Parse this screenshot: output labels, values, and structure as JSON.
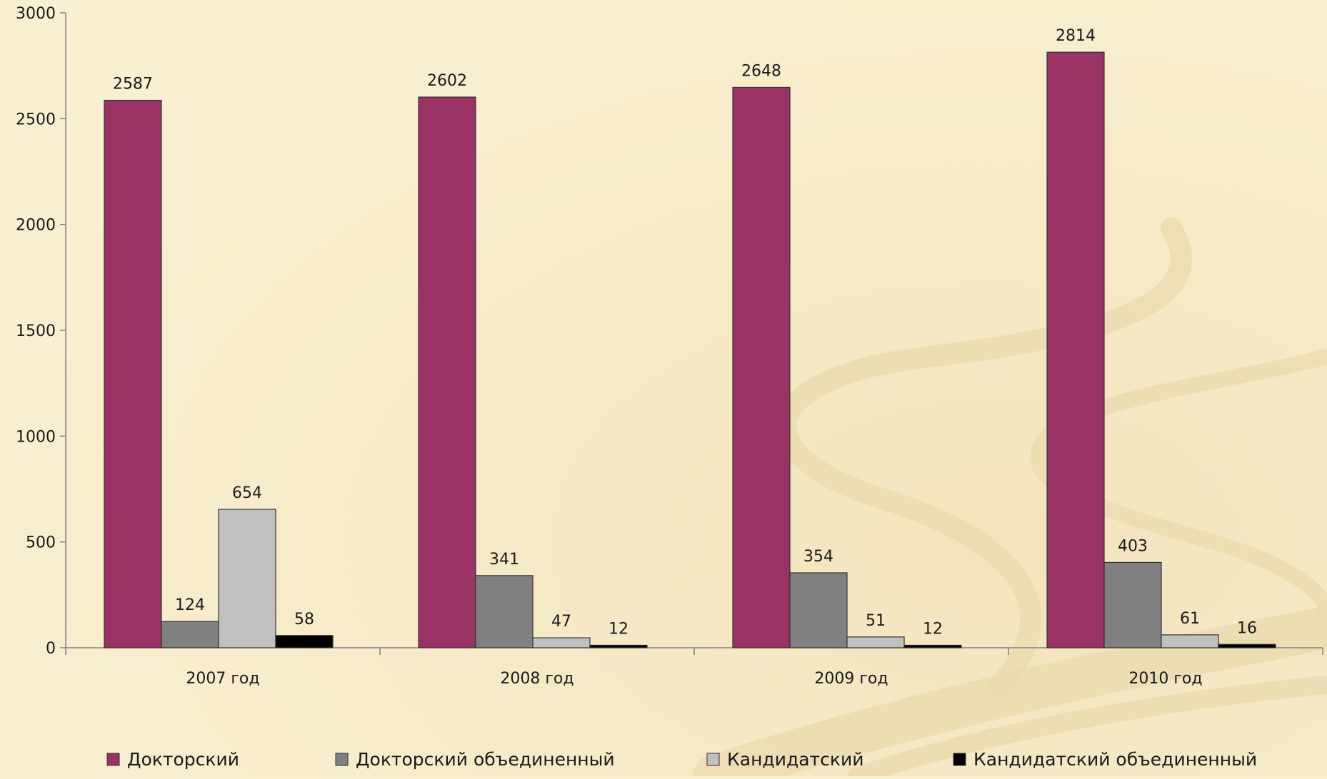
{
  "chart_data": {
    "type": "bar",
    "categories": [
      "2007 год",
      "2008 год",
      "2009 год",
      "2010 год"
    ],
    "series": [
      {
        "name": "Докторский",
        "color": "#993366",
        "values": [
          2587,
          2602,
          2648,
          2814
        ]
      },
      {
        "name": "Докторский объединенный",
        "color": "#808080",
        "values": [
          124,
          341,
          354,
          403
        ]
      },
      {
        "name": "Кандидатский",
        "color": "#c0c0c0",
        "values": [
          654,
          47,
          51,
          61
        ]
      },
      {
        "name": "Кандидатский объединенный",
        "color": "#000000",
        "values": [
          58,
          12,
          12,
          16
        ]
      }
    ],
    "data_labels": [
      [
        "2587",
        "2602",
        "2648",
        "2814"
      ],
      [
        "124",
        "341",
        "354",
        "403"
      ],
      [
        "654",
        "47",
        "51",
        "61"
      ],
      [
        "58",
        "12",
        "12",
        "16"
      ]
    ],
    "ylim": [
      0,
      3000
    ],
    "yticks": [
      "0",
      "500",
      "1000",
      "1500",
      "2000",
      "2500",
      "3000"
    ],
    "legend_position": "bottom",
    "grid": false
  }
}
